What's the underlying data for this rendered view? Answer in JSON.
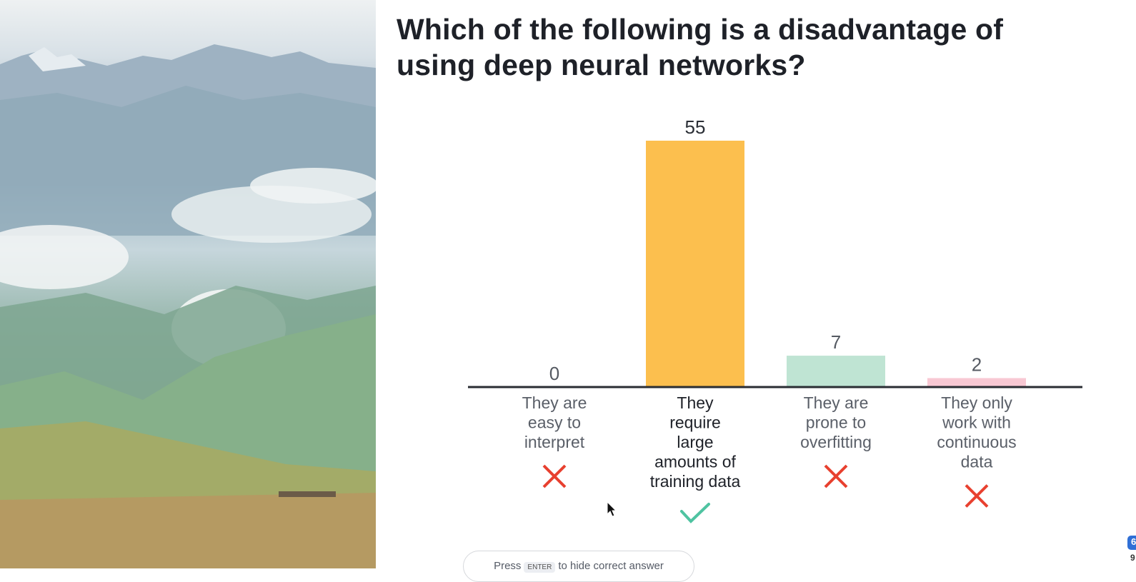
{
  "question": "Which of the following is a disadvantage of using deep neural networks?",
  "chart_data": {
    "type": "bar",
    "categories": [
      "They are easy to interpret",
      "They require large amounts of training data",
      "They are prone to overfitting",
      "They only work with continuous data"
    ],
    "category_lines": [
      [
        "They are",
        "easy to",
        "interpret"
      ],
      [
        "They",
        "require",
        "large",
        "amounts of",
        "training data"
      ],
      [
        "They are",
        "prone to",
        "overfitting"
      ],
      [
        "They only",
        "work with",
        "continuous",
        "data"
      ]
    ],
    "values": [
      0,
      55,
      7,
      2
    ],
    "correct": [
      false,
      true,
      false,
      false
    ],
    "colors": [
      "#cfd3d8",
      "#fcbf4e",
      "#bfe4d3",
      "#f8c8d3"
    ],
    "ylim": [
      0,
      55
    ],
    "grid": false,
    "title": "",
    "xlabel": "",
    "ylabel": ""
  },
  "hint": {
    "prefix": "Press",
    "key": "ENTER",
    "suffix": "to hide correct answer"
  },
  "corner_badge": "6",
  "corner_badge_sub": "9"
}
